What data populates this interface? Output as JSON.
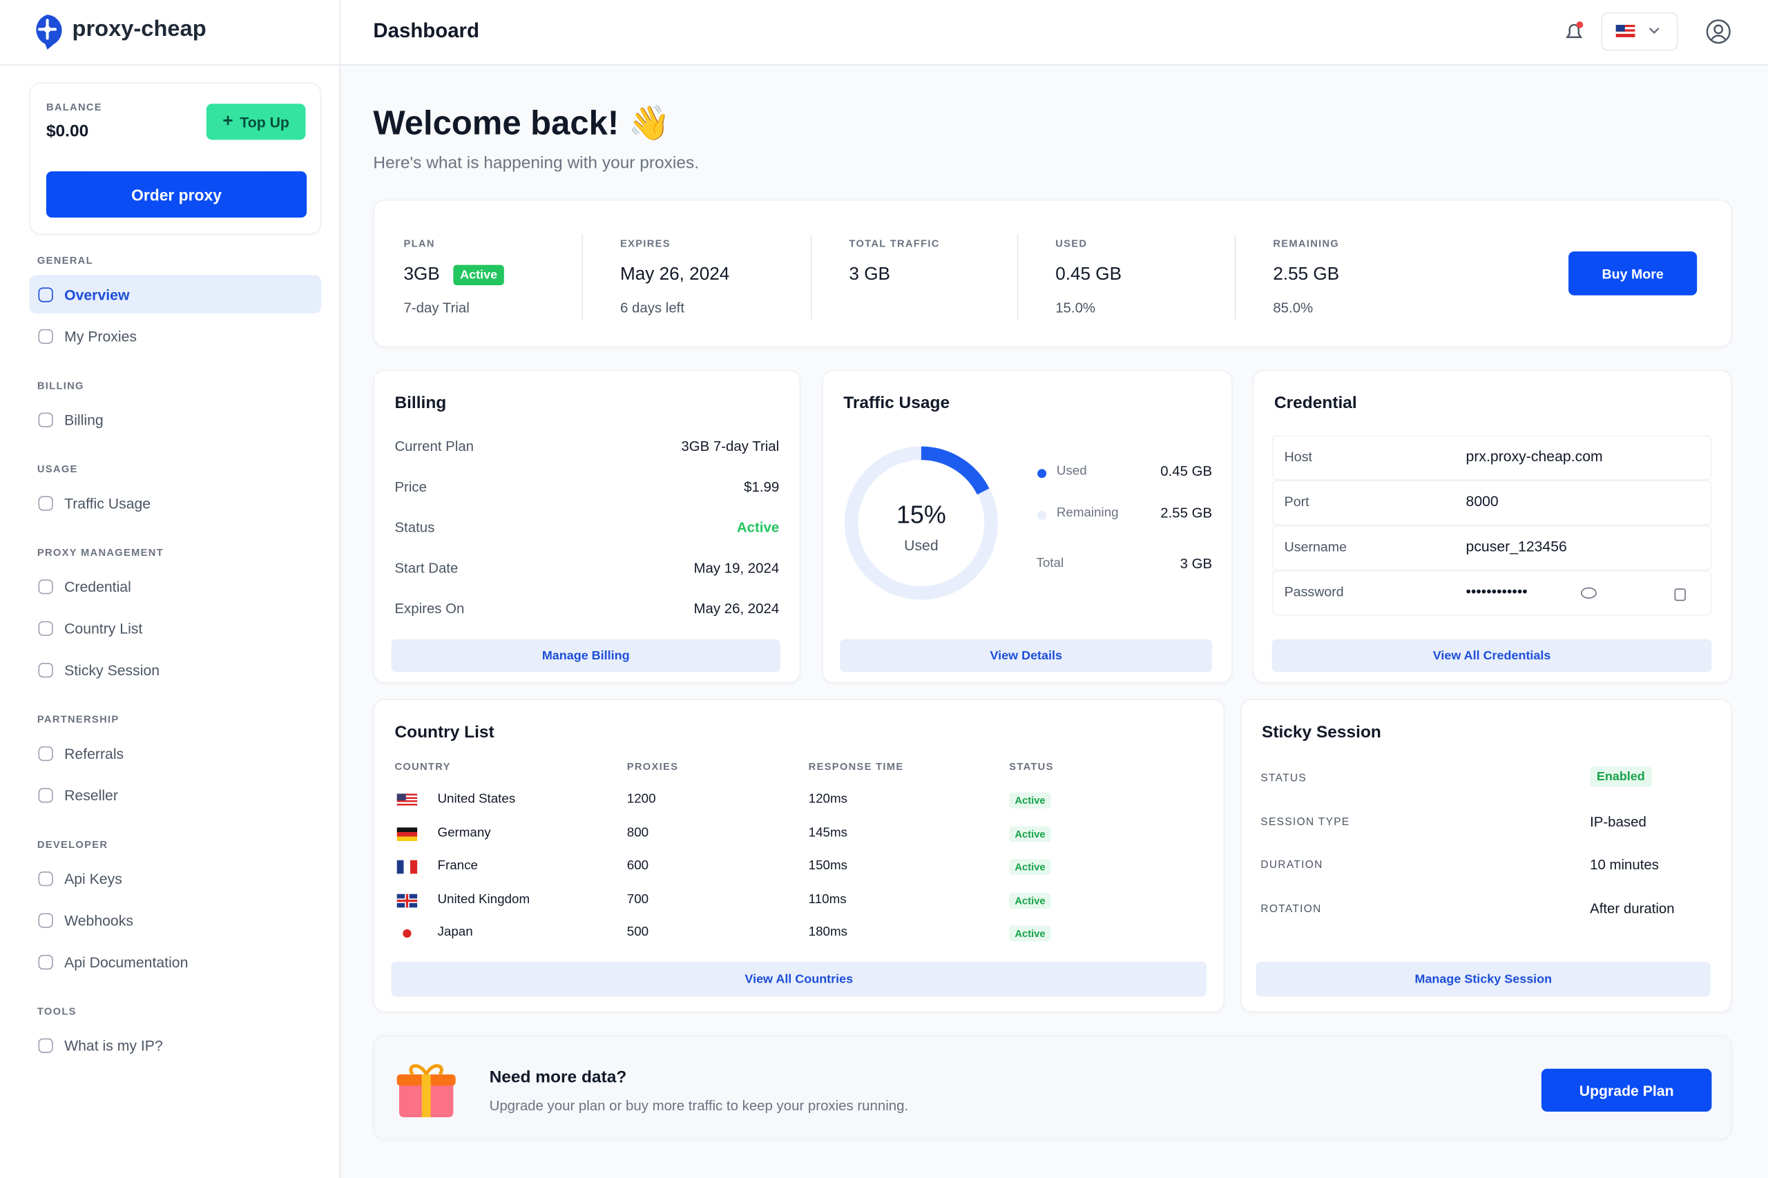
{
  "header": {
    "logo": "proxy-cheap",
    "title": "Dashboard"
  },
  "sidebar": {
    "balance_label": "BALANCE",
    "balance": "$0.00",
    "top_up": "Top Up",
    "order": "Order proxy",
    "sections": [
      {
        "title": "GENERAL",
        "items": [
          "Overview",
          "My Proxies"
        ]
      },
      {
        "title": "BILLING",
        "items": [
          "Billing"
        ]
      },
      {
        "title": "USAGE",
        "items": [
          "Traffic Usage"
        ]
      },
      {
        "title": "PROXY MANAGEMENT",
        "items": [
          "Credential",
          "Country List",
          "Sticky Session"
        ]
      },
      {
        "title": "PARTNERSHIP",
        "items": [
          "Referrals",
          "Reseller"
        ]
      },
      {
        "title": "DEVELOPER",
        "items": [
          "Api Keys",
          "Webhooks",
          "Api Documentation"
        ]
      },
      {
        "title": "TOOLS",
        "items": [
          "What is my IP?"
        ]
      }
    ]
  },
  "welcome": {
    "title": "Welcome back! 👋",
    "subtitle": "Here's what is happening with your proxies."
  },
  "summary": {
    "items": [
      {
        "label": "PLAN",
        "value": "3GB",
        "badge": "Active",
        "sub": "7-day Trial"
      },
      {
        "label": "EXPIRES",
        "value": "May 26, 2024",
        "sub": "6 days left"
      },
      {
        "label": "TOTAL TRAFFIC",
        "value": "3 GB"
      },
      {
        "label": "USED",
        "value": "0.45 GB",
        "sub": "15.0%"
      },
      {
        "label": "REMAINING",
        "value": "2.55 GB",
        "sub": "85.0%"
      }
    ],
    "button": "Buy More"
  },
  "billing": {
    "title": "Billing",
    "rows": [
      [
        "Current Plan",
        "3GB 7-day Trial"
      ],
      [
        "Price",
        "$1.99"
      ],
      [
        "Status",
        "Active"
      ],
      [
        "Start Date",
        "May 19, 2024"
      ],
      [
        "Expires On",
        "May 26, 2024"
      ]
    ],
    "button": "Manage Billing"
  },
  "traffic": {
    "title": "Traffic Usage",
    "percent": "15%",
    "percent_label": "Used",
    "rows": [
      [
        "Used",
        "0.45 GB"
      ],
      [
        "Remaining",
        "2.55 GB"
      ],
      [
        "Total",
        "3 GB"
      ]
    ],
    "button": "View Details"
  },
  "credential": {
    "title": "Credential",
    "rows": [
      [
        "Host",
        "prx.proxy-cheap.com"
      ],
      [
        "Port",
        "8000"
      ],
      [
        "Username",
        "pcuser_123456"
      ],
      [
        "Password",
        "••••••••••••"
      ]
    ],
    "button": "View All Credentials"
  },
  "country_list": {
    "title": "Country List",
    "columns": [
      "COUNTRY",
      "PROXIES",
      "RESPONSE TIME",
      "STATUS"
    ],
    "rows": [
      [
        "United States",
        "1200",
        "120ms",
        "Active"
      ],
      [
        "Germany",
        "800",
        "145ms",
        "Active"
      ],
      [
        "France",
        "600",
        "150ms",
        "Active"
      ],
      [
        "United Kingdom",
        "700",
        "110ms",
        "Active"
      ],
      [
        "Japan",
        "500",
        "180ms",
        "Active"
      ]
    ],
    "button": "View All Countries"
  },
  "sticky": {
    "title": "Sticky Session",
    "rows": [
      [
        "STATUS",
        "Enabled"
      ],
      [
        "SESSION TYPE",
        "IP-based"
      ],
      [
        "DURATION",
        "10 minutes"
      ],
      [
        "ROTATION",
        "After duration"
      ]
    ],
    "button": "Manage Sticky Session"
  },
  "promo": {
    "title": "Need more data?",
    "text": "Upgrade your plan or buy more traffic to keep your proxies running.",
    "button": "Upgrade Plan"
  }
}
